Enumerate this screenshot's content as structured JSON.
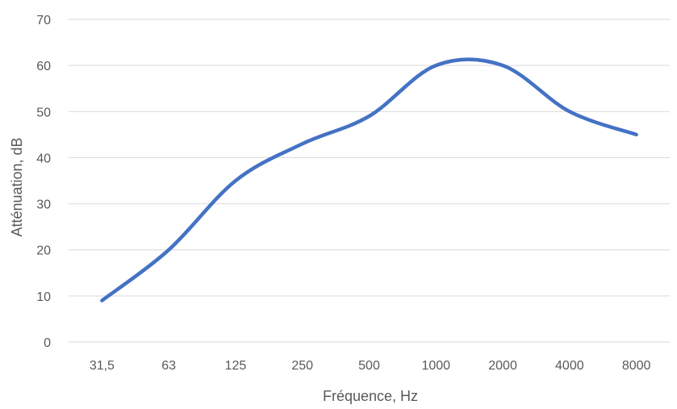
{
  "chart_data": {
    "type": "line",
    "title": "",
    "xlabel": "Fréquence, Hz",
    "ylabel": "Atténuation, dB",
    "categories": [
      "31,5",
      "63",
      "125",
      "250",
      "500",
      "1000",
      "2000",
      "4000",
      "8000"
    ],
    "series": [
      {
        "values": [
          9,
          20,
          35,
          43,
          49,
          60,
          60,
          50,
          45
        ]
      }
    ],
    "ylim": [
      0,
      70
    ],
    "yticks": [
      0,
      10,
      20,
      30,
      40,
      50,
      60,
      70
    ],
    "grid": true,
    "legend": "none",
    "line_color": "#4472C4",
    "grid_color": "#d9d9d9",
    "text_color": "#595959"
  }
}
